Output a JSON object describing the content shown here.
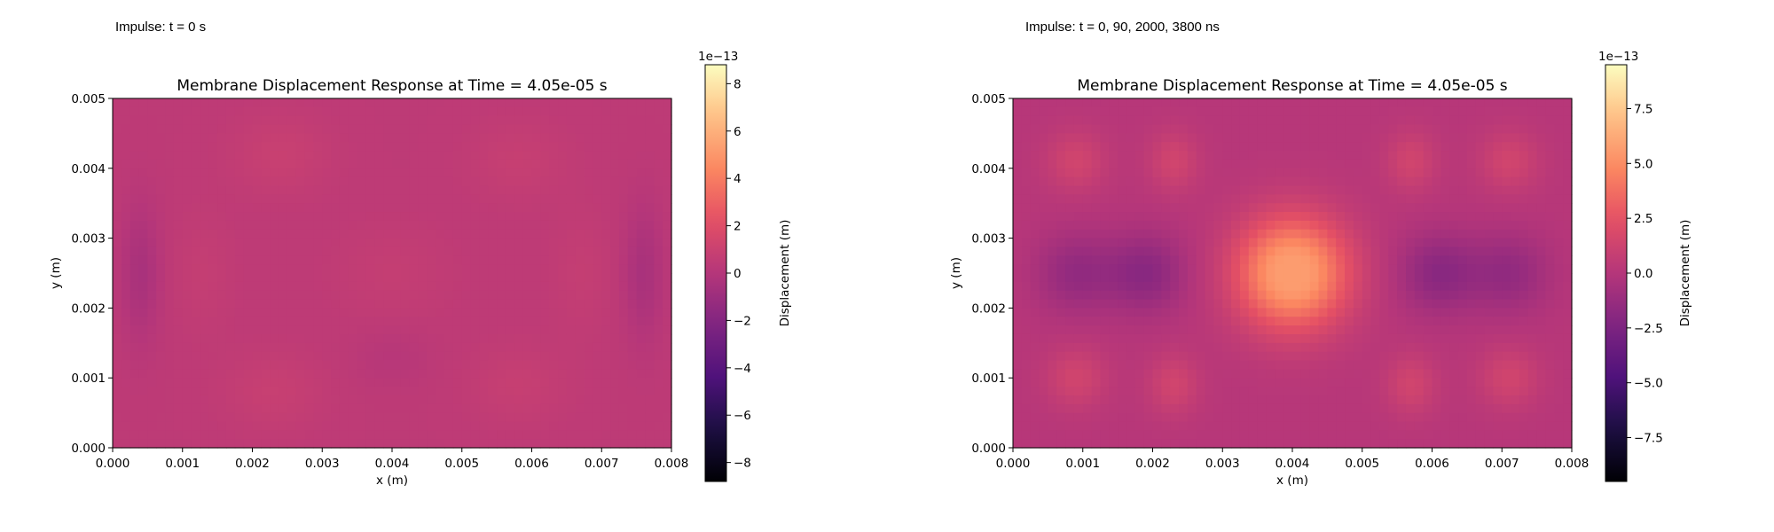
{
  "panels": [
    {
      "impulse_note": "Impulse: t = 0 s",
      "chart_data": {
        "type": "heatmap",
        "title": "Membrane Displacement Response at Time = 4.05e-05 s",
        "xlabel": "x (m)",
        "ylabel": "y (m)",
        "xlim": [
          0,
          0.008
        ],
        "ylim": [
          0,
          0.005
        ],
        "x_ticks": [
          0.0,
          0.001,
          0.002,
          0.003,
          0.004,
          0.005,
          0.006,
          0.007,
          0.008
        ],
        "x_tick_labels": [
          "0.000",
          "0.001",
          "0.002",
          "0.003",
          "0.004",
          "0.005",
          "0.006",
          "0.007",
          "0.008"
        ],
        "y_ticks": [
          0.0,
          0.001,
          0.002,
          0.003,
          0.004,
          0.005
        ],
        "y_tick_labels": [
          "0.000",
          "0.001",
          "0.002",
          "0.003",
          "0.004",
          "0.005"
        ],
        "colormap": "magma",
        "colorbar": {
          "label": "Displacement (m)",
          "offset_label": "1e−13",
          "vmin": -8.8,
          "vmax": 8.8,
          "ticks": [
            -8,
            -6,
            -4,
            -2,
            0,
            2,
            4,
            6,
            8
          ],
          "tick_labels": [
            "−8",
            "−6",
            "−4",
            "−2",
            "0",
            "2",
            "4",
            "6",
            "8"
          ]
        },
        "field_components": [
          {
            "kind": "base",
            "value": 0.4
          },
          {
            "kind": "blob",
            "x": 0.0024,
            "y": 0.0042,
            "sx": 0.0005,
            "sy": 0.0004,
            "amp": 0.5
          },
          {
            "kind": "blob",
            "x": 0.0058,
            "y": 0.0041,
            "sx": 0.0005,
            "sy": 0.0004,
            "amp": 0.4
          },
          {
            "kind": "blob",
            "x": 0.0023,
            "y": 0.0008,
            "sx": 0.0005,
            "sy": 0.0004,
            "amp": 0.45
          },
          {
            "kind": "blob",
            "x": 0.0058,
            "y": 0.0009,
            "sx": 0.0005,
            "sy": 0.0004,
            "amp": 0.4
          },
          {
            "kind": "blob",
            "x": 0.004,
            "y": 0.0025,
            "sx": 0.0006,
            "sy": 0.0005,
            "amp": 0.3
          },
          {
            "kind": "blob",
            "x": 0.0013,
            "y": 0.0025,
            "sx": 0.0003,
            "sy": 0.0006,
            "amp": 0.3
          },
          {
            "kind": "blob",
            "x": 0.0067,
            "y": 0.0025,
            "sx": 0.0003,
            "sy": 0.0006,
            "amp": 0.3
          },
          {
            "kind": "blob",
            "x": 0.0004,
            "y": 0.0025,
            "sx": 0.0002,
            "sy": 0.0007,
            "amp": -0.9
          },
          {
            "kind": "blob",
            "x": 0.0076,
            "y": 0.0025,
            "sx": 0.0002,
            "sy": 0.0007,
            "amp": -0.9
          },
          {
            "kind": "blob",
            "x": 0.004,
            "y": 0.0013,
            "sx": 0.0004,
            "sy": 0.0003,
            "amp": -0.3
          }
        ]
      }
    },
    {
      "impulse_note": "Impulse: t = 0, 90, 2000, 3800 ns",
      "chart_data": {
        "type": "heatmap",
        "title": "Membrane Displacement Response at Time = 4.05e-05 s",
        "xlabel": "x (m)",
        "ylabel": "y (m)",
        "xlim": [
          0,
          0.008
        ],
        "ylim": [
          0,
          0.005
        ],
        "x_ticks": [
          0.0,
          0.001,
          0.002,
          0.003,
          0.004,
          0.005,
          0.006,
          0.007,
          0.008
        ],
        "x_tick_labels": [
          "0.000",
          "0.001",
          "0.002",
          "0.003",
          "0.004",
          "0.005",
          "0.006",
          "0.007",
          "0.008"
        ],
        "y_ticks": [
          0.0,
          0.001,
          0.002,
          0.003,
          0.004,
          0.005
        ],
        "y_tick_labels": [
          "0.000",
          "0.001",
          "0.002",
          "0.003",
          "0.004",
          "0.005"
        ],
        "colormap": "magma",
        "colorbar": {
          "label": "Displacement (m)",
          "offset_label": "1e−13",
          "vmin": -9.5,
          "vmax": 9.5,
          "ticks": [
            -7.5,
            -5.0,
            -2.5,
            0.0,
            2.5,
            5.0,
            7.5
          ],
          "tick_labels": [
            "−7.5",
            "−5.0",
            "−2.5",
            "0.0",
            "2.5",
            "5.0",
            "7.5"
          ]
        },
        "field_components": [
          {
            "kind": "base",
            "value": 0.1
          },
          {
            "kind": "blob",
            "x": 0.004,
            "y": 0.0025,
            "sx": 0.00055,
            "sy": 0.00055,
            "amp": 6.5
          },
          {
            "kind": "blob",
            "x": 0.004,
            "y": 0.0025,
            "sx": 0.00018,
            "sy": 0.00018,
            "amp": -1.0
          },
          {
            "kind": "blob",
            "x": 0.0009,
            "y": 0.0041,
            "sx": 0.0003,
            "sy": 0.0003,
            "amp": 1.3
          },
          {
            "kind": "blob",
            "x": 0.0023,
            "y": 0.0041,
            "sx": 0.00025,
            "sy": 0.0003,
            "amp": 1.3
          },
          {
            "kind": "blob",
            "x": 0.0057,
            "y": 0.0041,
            "sx": 0.00025,
            "sy": 0.0003,
            "amp": 1.3
          },
          {
            "kind": "blob",
            "x": 0.0071,
            "y": 0.0041,
            "sx": 0.0003,
            "sy": 0.0003,
            "amp": 1.3
          },
          {
            "kind": "blob",
            "x": 0.0009,
            "y": 0.001,
            "sx": 0.0003,
            "sy": 0.0003,
            "amp": 1.3
          },
          {
            "kind": "blob",
            "x": 0.0023,
            "y": 0.0009,
            "sx": 0.00025,
            "sy": 0.0003,
            "amp": 1.3
          },
          {
            "kind": "blob",
            "x": 0.0057,
            "y": 0.0009,
            "sx": 0.00025,
            "sy": 0.0003,
            "amp": 1.3
          },
          {
            "kind": "blob",
            "x": 0.0071,
            "y": 0.001,
            "sx": 0.0003,
            "sy": 0.0003,
            "amp": 1.3
          },
          {
            "kind": "blob",
            "x": 0.0009,
            "y": 0.0025,
            "sx": 0.0004,
            "sy": 0.0004,
            "amp": -1.6
          },
          {
            "kind": "blob",
            "x": 0.0019,
            "y": 0.0025,
            "sx": 0.0004,
            "sy": 0.0004,
            "amp": -2.0
          },
          {
            "kind": "blob",
            "x": 0.0061,
            "y": 0.0025,
            "sx": 0.0004,
            "sy": 0.0004,
            "amp": -2.0
          },
          {
            "kind": "blob",
            "x": 0.0071,
            "y": 0.0025,
            "sx": 0.0004,
            "sy": 0.0004,
            "amp": -1.6
          }
        ]
      }
    }
  ]
}
